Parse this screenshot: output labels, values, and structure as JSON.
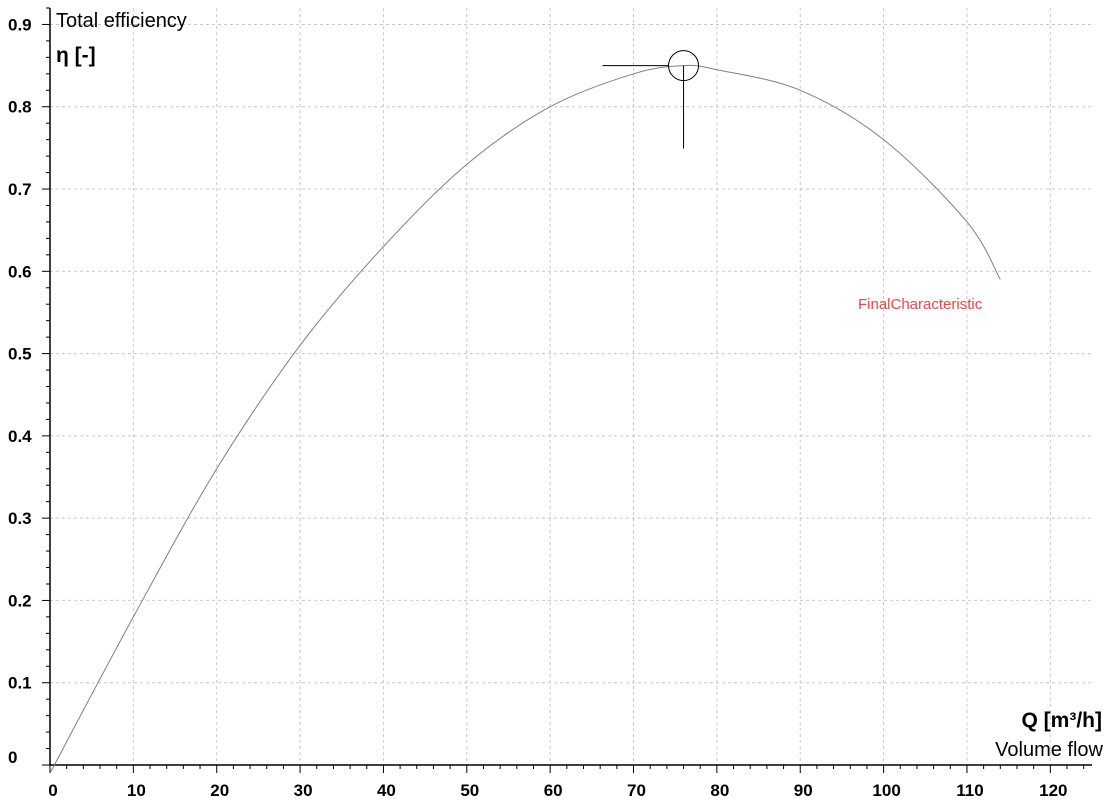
{
  "chart_data": {
    "type": "line",
    "title": "Total efficiency",
    "ylabel": "η [-]",
    "xlabel_unit": "Q [m³/h]",
    "xlabel_name": "Volume flow",
    "xlim": [
      0,
      125
    ],
    "ylim": [
      0,
      0.92
    ],
    "x_ticks": [
      0,
      10,
      20,
      30,
      40,
      50,
      60,
      70,
      80,
      90,
      100,
      110,
      120
    ],
    "x_tick_labels": [
      "0",
      "10",
      "20",
      "30",
      "40",
      "50",
      "60",
      "70",
      "80",
      "90",
      "100",
      "110",
      "120"
    ],
    "y_ticks": [
      0,
      0.1,
      0.2,
      0.3,
      0.4,
      0.5,
      0.6,
      0.7,
      0.8,
      0.9
    ],
    "y_tick_labels": [
      "0",
      "0.1",
      "0.2",
      "0.3",
      "0.4",
      "0.5",
      "0.6",
      "0.7",
      "0.8",
      "0.9"
    ],
    "grid": true,
    "colors": {
      "curve": "#808080",
      "series_label": "#e8474d",
      "grid": "#c8c8c8",
      "marker": "#000000"
    },
    "series": [
      {
        "name": "FinalCharacteristic",
        "x": [
          0,
          10,
          20,
          30,
          40,
          50,
          60,
          70,
          76,
          80,
          90,
          100,
          110,
          114
        ],
        "y": [
          -0.01,
          0.18,
          0.36,
          0.51,
          0.63,
          0.73,
          0.8,
          0.84,
          0.85,
          0.845,
          0.82,
          0.76,
          0.66,
          0.59
        ]
      }
    ],
    "operating_point": {
      "x": 76,
      "y": 0.85
    }
  }
}
